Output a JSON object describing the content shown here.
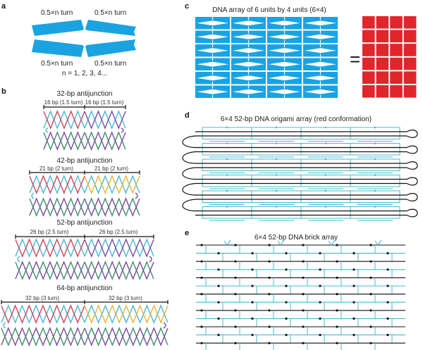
{
  "panel_labels": {
    "a": "a",
    "b": "b",
    "c": "c",
    "d": "d",
    "e": "e"
  },
  "panel_a": {
    "turn_label": "0.5×n turn",
    "n_values": "n = 1, 2, 3, 4..."
  },
  "panel_b": {
    "antijunctions": [
      {
        "title": "32-bp antijunction",
        "left": "16 bp (1.5 turn)",
        "right": "16 bp (1.5 turn)",
        "periods": 3,
        "accent": "#7a4a9e"
      },
      {
        "title": "42-bp antijunction",
        "left": "21 bp (2 turn)",
        "right": "21 bp (2 turn)",
        "periods": 4,
        "accent": "#e8b43a"
      },
      {
        "title": "52-bp antijunction",
        "left": "26 bp  (2.5 turn)",
        "right": "26 bp  (2.5 turn)",
        "periods": 5,
        "accent": "#7a4a9e"
      },
      {
        "title": "64-bp antijunction",
        "left": "32 bp (3 turn)",
        "right": "32 bp (3 turn)",
        "periods": 6,
        "accent": "#e8b43a"
      }
    ]
  },
  "panel_c": {
    "title": "DNA array of 6 units by 4 units (6×4)",
    "equals": "=",
    "rows": 6,
    "cols": 4
  },
  "panel_d": {
    "title": "6×4 52-bp DNA origami array (red conformation)"
  },
  "panel_e": {
    "title": "6×4 52-bp DNA brick array"
  },
  "colors": {
    "blue": "#1aa3e0",
    "red": "#e0252b",
    "cyan": "#4ab8d0",
    "strand_red": "#c9455e",
    "green": "#3e8f6a",
    "black": "#111111"
  }
}
